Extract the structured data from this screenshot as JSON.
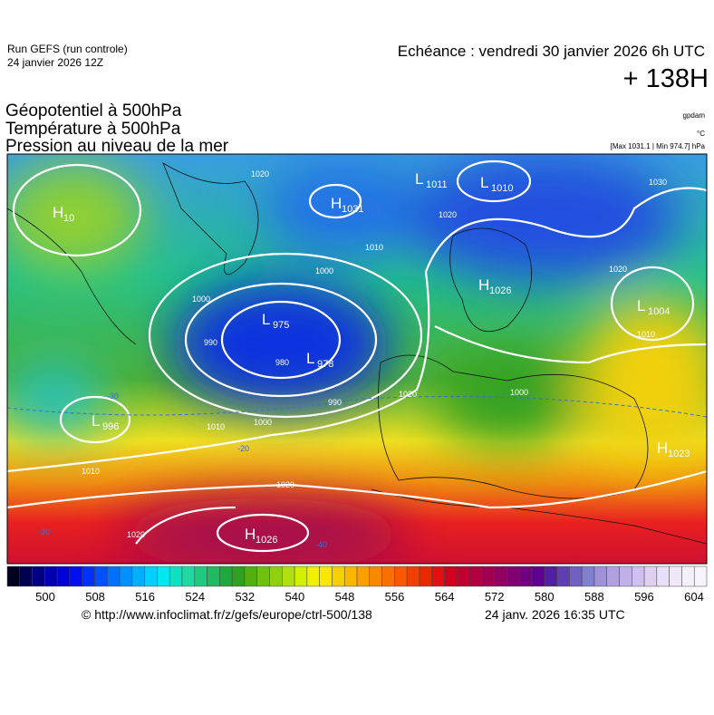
{
  "header": {
    "run": "Run GEFS (run controle)",
    "run_date": "24 janvier 2026 12Z",
    "valid": "Echéance : vendredi 30 janvier 2026 6h UTC",
    "lead": "+ 138H"
  },
  "titles": [
    "Géopotentiel à 500hPa",
    "Température à 500hPa",
    "Pression au niveau de la mer"
  ],
  "units": {
    "geopotential": "gpdam",
    "temperature": "°C",
    "pressure": "[Max 1031.1 | Min 974.7] hPa"
  },
  "pressure_centers": [
    {
      "type": "H",
      "value": "10"
    },
    {
      "type": "H",
      "value": "1031"
    },
    {
      "type": "L",
      "value": "1011"
    },
    {
      "type": "L",
      "value": "1010"
    },
    {
      "type": "H",
      "value": "1026"
    },
    {
      "type": "L",
      "value": "1004"
    },
    {
      "type": "L",
      "value": "975"
    },
    {
      "type": "L",
      "value": "978"
    },
    {
      "type": "L",
      "value": "996"
    },
    {
      "type": "H",
      "value": "1023"
    },
    {
      "type": "H",
      "value": "1026"
    }
  ],
  "isobar_labels": [
    1020,
    1030,
    1020,
    1010,
    1000,
    1000,
    990,
    980,
    990,
    1000,
    1010,
    1010,
    1020,
    1020,
    1010,
    1020,
    1000,
    1020
  ],
  "temperature_labels": [
    -30,
    -20,
    -30,
    -40
  ],
  "colorbar": {
    "ticks": [
      500,
      508,
      516,
      524,
      532,
      540,
      548,
      556,
      564,
      572,
      580,
      588,
      596,
      604
    ]
  },
  "footer": {
    "url": "© http://www.infoclimat.fr/z/gefs/europe/ctrl-500/138",
    "timestamp": "24 janv. 2026 16:35 UTC"
  }
}
